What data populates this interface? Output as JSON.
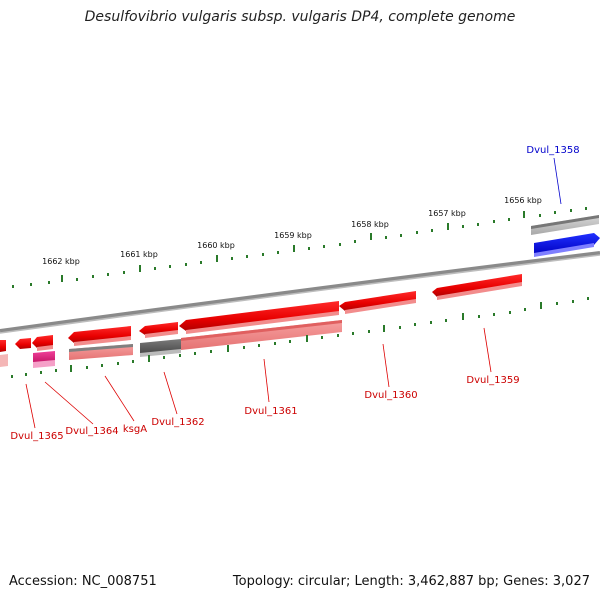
{
  "title": "Desulfovibrio vulgaris subsp. vulgaris DP4, complete genome",
  "accession": "Accession: NC_008751",
  "summary": "Topology: circular; Length: 3,462,887 bp; Genes: 3,027",
  "colors": {
    "forward_gene": "#ee0000",
    "reverse_gene": "#ee1111",
    "cds_pink": "#f08080",
    "rna_magenta": "#e0207a",
    "pseudo_gray": "#555555",
    "highlight_blue": "#0000dd",
    "tick_green": "#2a7a2a",
    "backbone_gray": "#888888"
  },
  "ticks": [
    "1656 kbp",
    "1657 kbp",
    "1658 kbp",
    "1659 kbp",
    "1660 kbp",
    "1661 kbp",
    "1662 kbp"
  ],
  "genes": {
    "dvul_1358": "Dvul_1358",
    "dvul_1359": "Dvul_1359",
    "dvul_1360": "Dvul_1360",
    "dvul_1361": "Dvul_1361",
    "dvul_1362": "Dvul_1362",
    "ksga": "ksgA",
    "dvul_1364": "Dvul_1364",
    "dvul_1365": "Dvul_1365"
  }
}
